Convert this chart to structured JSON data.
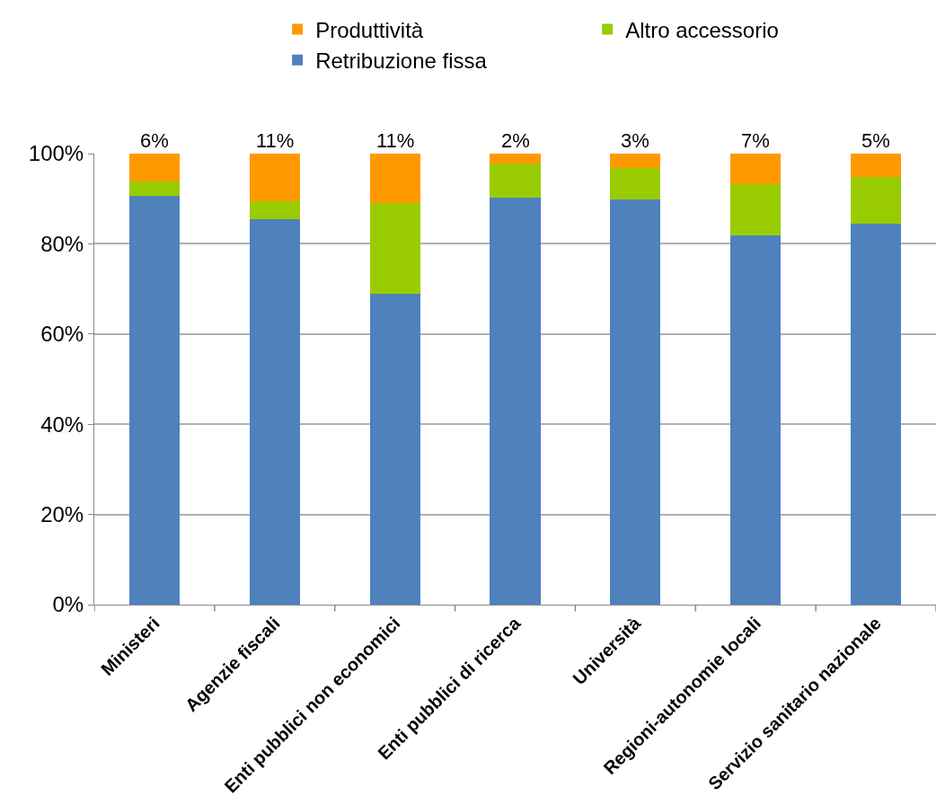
{
  "chart_data": {
    "type": "bar",
    "stacked": true,
    "categories": [
      "Ministeri",
      "Agenzie fiscali",
      "Enti pubblici non economici",
      "Enti pubblici di ricerca",
      "Università",
      "Regioni-autonomie locali",
      "Servizio sanitario nazionale"
    ],
    "series": [
      {
        "name": "Retribuzione fissa",
        "color": "#4f81bd",
        "values": [
          90.6,
          85.4,
          68.9,
          90.2,
          89.8,
          81.8,
          84.4
        ]
      },
      {
        "name": "Altro accessorio",
        "color": "#99cc00",
        "values": [
          3.2,
          4.1,
          20.2,
          7.7,
          7.0,
          11.4,
          10.5
        ]
      },
      {
        "name": "Produttività",
        "color": "#ff9900",
        "values": [
          6.2,
          10.5,
          10.9,
          2.1,
          3.2,
          6.8,
          5.1
        ],
        "value_labels": [
          "6%",
          "11%",
          "11%",
          "2%",
          "3%",
          "7%",
          "5%"
        ]
      }
    ],
    "ylim": [
      0,
      100
    ],
    "yticks": [
      {
        "value": 0,
        "label": "0%"
      },
      {
        "value": 20,
        "label": "20%"
      },
      {
        "value": 40,
        "label": "40%"
      },
      {
        "value": 60,
        "label": "60%"
      },
      {
        "value": 80,
        "label": "80%"
      },
      {
        "value": 100,
        "label": "100%"
      }
    ],
    "grid": "y",
    "legend": "top"
  }
}
